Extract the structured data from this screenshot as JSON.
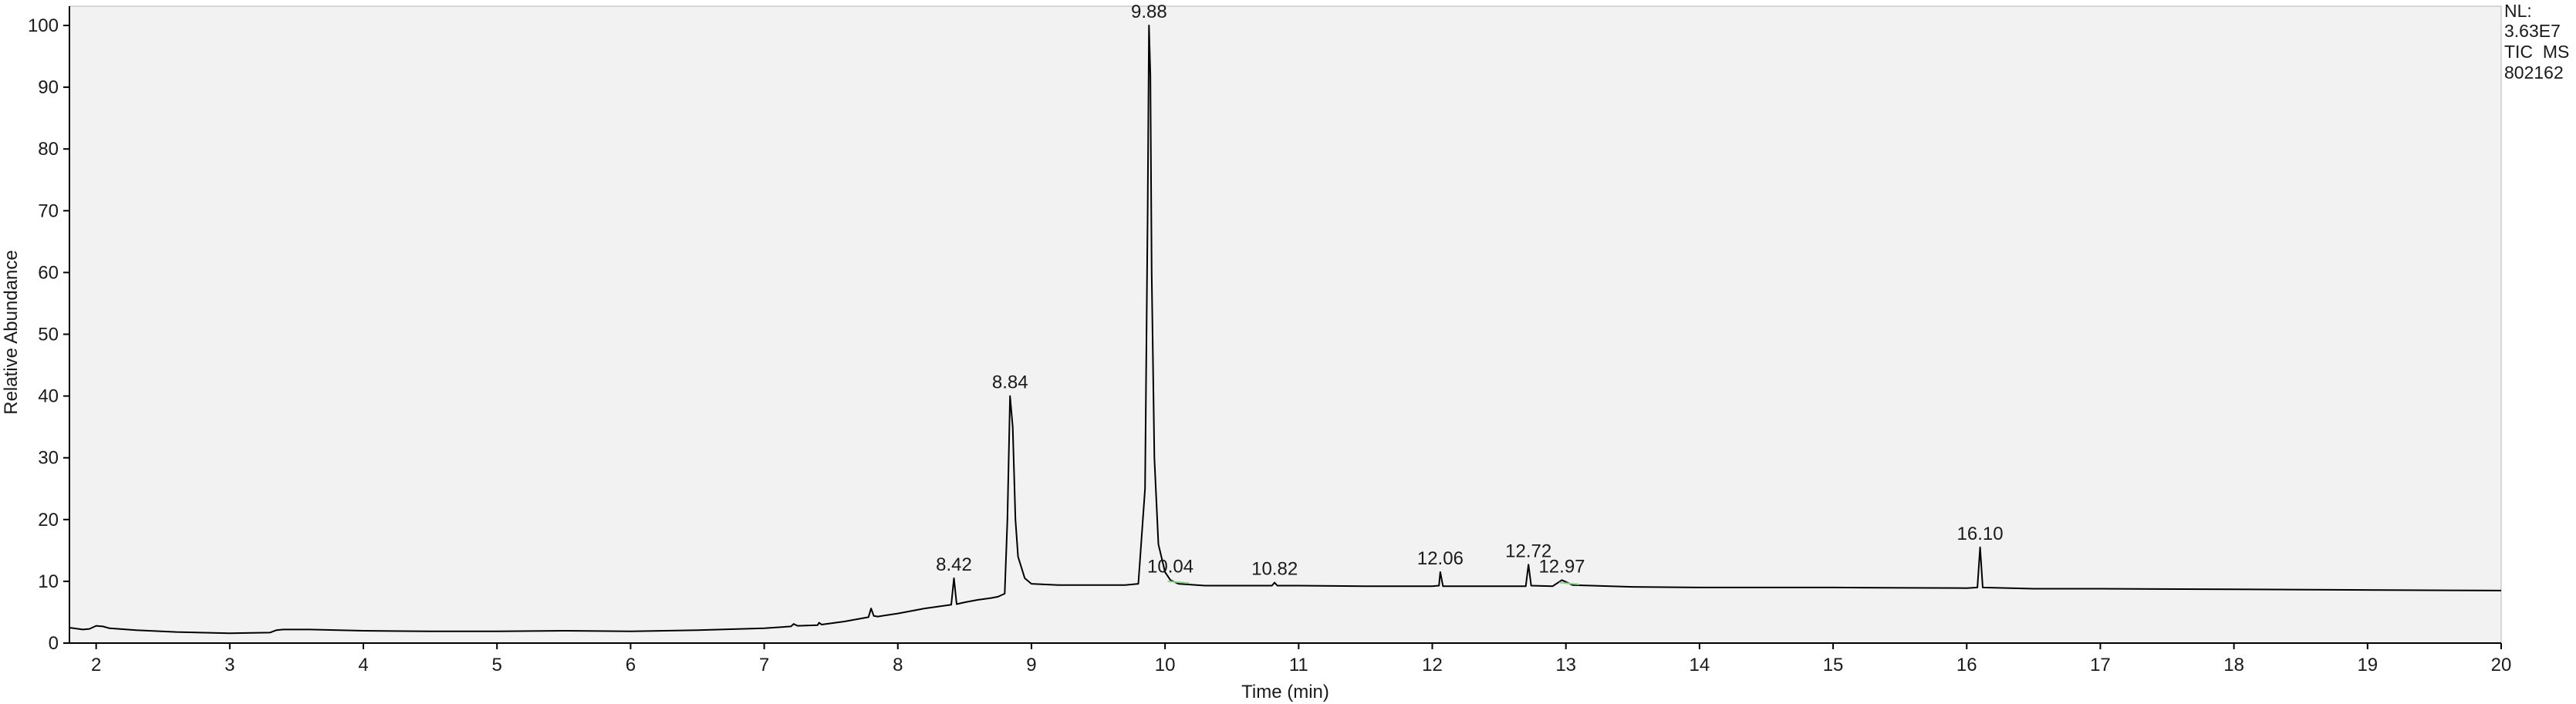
{
  "chart_data": {
    "type": "line",
    "title": "",
    "xlabel": "Time (min)",
    "ylabel": "Relative Abundance",
    "xlim": [
      1.8,
      20
    ],
    "ylim": [
      0,
      100
    ],
    "x_ticks": [
      "2",
      "3",
      "4",
      "5",
      "6",
      "7",
      "8",
      "9",
      "10",
      "11",
      "12",
      "13",
      "14",
      "15",
      "16",
      "17",
      "18",
      "19",
      "20"
    ],
    "y_ticks": [
      "0",
      "10",
      "20",
      "30",
      "40",
      "50",
      "60",
      "70",
      "80",
      "90",
      "100"
    ],
    "info_lines": [
      "NL:",
      "3.63E7",
      "TIC  MS",
      "802162"
    ],
    "grid": false,
    "legend": "none",
    "colors": {
      "trace": "#000000",
      "plot_bg": "#f2f2f2",
      "integration_marker": "#8fd08f"
    },
    "peaks": [
      {
        "label": "8.42",
        "x": 8.42,
        "y": 10.5
      },
      {
        "label": "8.84",
        "x": 8.84,
        "y": 40.0
      },
      {
        "label": "9.88",
        "x": 9.88,
        "y": 100.0
      },
      {
        "label": "10.04",
        "x": 10.04,
        "y": 10.2
      },
      {
        "label": "10.82",
        "x": 10.82,
        "y": 9.8
      },
      {
        "label": "12.06",
        "x": 12.06,
        "y": 11.5
      },
      {
        "label": "12.72",
        "x": 12.72,
        "y": 12.7
      },
      {
        "label": "12.97",
        "x": 12.97,
        "y": 10.2
      },
      {
        "label": "16.10",
        "x": 16.1,
        "y": 15.5
      }
    ],
    "series": [
      {
        "x": [
          1.8,
          1.9,
          1.95,
          2.0,
          2.05,
          2.1,
          2.3,
          2.6,
          3.0,
          3.3,
          3.35,
          3.4,
          3.6,
          4.0,
          4.5,
          5.0,
          5.5,
          6.0,
          6.5,
          7.0,
          7.2,
          7.22,
          7.25,
          7.4,
          7.41,
          7.43,
          7.6,
          7.78,
          7.8,
          7.82,
          7.85,
          8.0,
          8.2,
          8.4,
          8.42,
          8.44,
          8.5,
          8.6,
          8.7,
          8.75,
          8.8,
          8.82,
          8.84,
          8.86,
          8.88,
          8.9,
          8.95,
          9.0,
          9.2,
          9.5,
          9.7,
          9.8,
          9.85,
          9.87,
          9.88,
          9.89,
          9.9,
          9.92,
          9.95,
          10.0,
          10.04,
          10.1,
          10.3,
          10.5,
          10.8,
          10.82,
          10.84,
          11.0,
          11.5,
          12.0,
          12.05,
          12.06,
          12.08,
          12.3,
          12.7,
          12.72,
          12.74,
          12.9,
          12.97,
          13.05,
          13.5,
          14.0,
          15.0,
          16.0,
          16.08,
          16.1,
          16.12,
          16.5,
          17.0,
          18.0,
          19.0,
          20.0
        ],
        "y": [
          2.5,
          2.2,
          2.3,
          2.8,
          2.7,
          2.4,
          2.1,
          1.8,
          1.6,
          1.7,
          2.1,
          2.2,
          2.2,
          2.0,
          1.9,
          1.9,
          2.0,
          1.9,
          2.1,
          2.4,
          2.7,
          3.1,
          2.8,
          2.9,
          3.3,
          3.0,
          3.5,
          4.2,
          5.6,
          4.4,
          4.3,
          4.8,
          5.6,
          6.2,
          10.5,
          6.3,
          6.6,
          7.0,
          7.3,
          7.5,
          8.0,
          20.0,
          40.0,
          35.0,
          20.0,
          14.0,
          10.5,
          9.6,
          9.4,
          9.4,
          9.4,
          9.6,
          25.0,
          70.0,
          100.0,
          92.0,
          60.0,
          30.0,
          16.0,
          11.5,
          10.2,
          9.6,
          9.3,
          9.3,
          9.3,
          9.8,
          9.3,
          9.3,
          9.2,
          9.2,
          9.3,
          11.5,
          9.2,
          9.2,
          9.2,
          12.7,
          9.3,
          9.2,
          10.2,
          9.4,
          9.1,
          9.0,
          9.0,
          8.9,
          9.0,
          15.5,
          9.0,
          8.8,
          8.8,
          8.7,
          8.6,
          8.5
        ]
      }
    ]
  }
}
